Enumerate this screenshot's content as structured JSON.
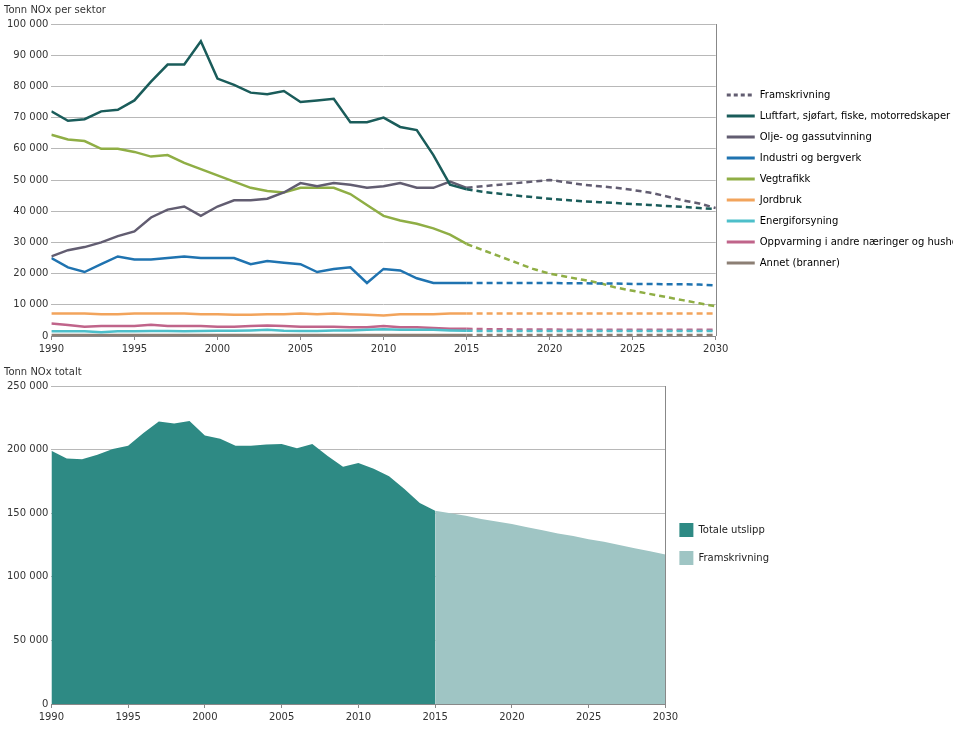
{
  "chart_data": [
    {
      "type": "line",
      "title": "Tonn NOx per sektor",
      "x": [
        1990,
        1991,
        1992,
        1993,
        1994,
        1995,
        1996,
        1997,
        1998,
        1999,
        2000,
        2001,
        2002,
        2003,
        2004,
        2005,
        2006,
        2007,
        2008,
        2009,
        2010,
        2011,
        2012,
        2013,
        2014,
        2015,
        2016,
        2017,
        2018,
        2019,
        2020,
        2021,
        2022,
        2023,
        2024,
        2025,
        2026,
        2027,
        2028,
        2029,
        2030
      ],
      "xlim": [
        1990,
        2030
      ],
      "xticks": [
        1990,
        1995,
        2000,
        2005,
        2010,
        2015,
        2020,
        2025,
        2030
      ],
      "ylim": [
        0,
        100000
      ],
      "yticks": [
        0,
        {
          "value": 10000,
          "label": "10 000"
        },
        {
          "value": 20000,
          "label": "20 000"
        },
        {
          "value": 30000,
          "label": "30 000"
        },
        {
          "value": 40000,
          "label": "40 000"
        },
        {
          "value": 50000,
          "label": "50 000"
        },
        {
          "value": 60000,
          "label": "60 000"
        },
        {
          "value": 70000,
          "label": "70 000"
        },
        {
          "value": 80000,
          "label": "80 000"
        },
        {
          "value": 90000,
          "label": "90 000"
        },
        {
          "value": 100000,
          "label": "100 000"
        }
      ],
      "grid": true,
      "legend": "right",
      "projection": {
        "name": "Framskrivning",
        "color": "#625d71",
        "line_style": "dashed"
      },
      "series": [
        {
          "name": "Luftfart, sjøfart, fiske, motorredskaper m.m.",
          "color": "#1a5c5a",
          "line_style": "solid",
          "values": [
            72000,
            69000,
            69500,
            72000,
            72500,
            75500,
            81500,
            87000,
            87000,
            94500,
            82500,
            80500,
            78000,
            77500,
            78500,
            75000,
            75500,
            76000,
            68500,
            68500,
            70000,
            67000,
            66000,
            58000,
            48500,
            47000,
            null,
            null,
            null,
            null,
            null,
            null,
            null,
            null,
            null,
            null,
            null,
            null,
            null,
            null,
            null
          ],
          "projection": [
            null,
            null,
            null,
            null,
            null,
            null,
            null,
            null,
            null,
            null,
            null,
            null,
            null,
            null,
            null,
            null,
            null,
            null,
            null,
            null,
            null,
            null,
            null,
            null,
            null,
            47000,
            46200,
            45600,
            45000,
            44500,
            44000,
            43600,
            43200,
            42900,
            42600,
            42300,
            42000,
            41700,
            41400,
            41000,
            40700
          ]
        },
        {
          "name": "Olje- og gassutvinning",
          "color": "#625d71",
          "line_style": "solid",
          "values": [
            25500,
            27500,
            28500,
            30000,
            32000,
            33500,
            38000,
            40500,
            41500,
            38500,
            41500,
            43500,
            43500,
            44000,
            46000,
            49000,
            48000,
            49000,
            48500,
            47500,
            48000,
            49000,
            47500,
            47500,
            49500,
            47500,
            null,
            null,
            null,
            null,
            null,
            null,
            null,
            null,
            null,
            null,
            null,
            null,
            null,
            null,
            null
          ],
          "projection": [
            null,
            null,
            null,
            null,
            null,
            null,
            null,
            null,
            null,
            null,
            null,
            null,
            null,
            null,
            null,
            null,
            null,
            null,
            null,
            null,
            null,
            null,
            null,
            null,
            null,
            47500,
            48000,
            48500,
            49000,
            49500,
            50000,
            49300,
            48500,
            48000,
            47500,
            46800,
            46000,
            44800,
            43500,
            42500,
            41000
          ]
        },
        {
          "name": "Industri og bergverk",
          "color": "#1f73b0",
          "line_style": "solid",
          "values": [
            25000,
            22000,
            20500,
            23000,
            25500,
            24500,
            24500,
            25000,
            25500,
            25000,
            25000,
            25000,
            23000,
            24000,
            23500,
            23000,
            20500,
            21500,
            22000,
            17000,
            21500,
            21000,
            18500,
            17000,
            17000,
            17000,
            null,
            null,
            null,
            null,
            null,
            null,
            null,
            null,
            null,
            null,
            null,
            null,
            null,
            null,
            null
          ],
          "projection": [
            null,
            null,
            null,
            null,
            null,
            null,
            null,
            null,
            null,
            null,
            null,
            null,
            null,
            null,
            null,
            null,
            null,
            null,
            null,
            null,
            null,
            null,
            null,
            null,
            null,
            17000,
            17000,
            17000,
            17000,
            17000,
            17000,
            16900,
            16900,
            16800,
            16800,
            16700,
            16700,
            16600,
            16600,
            16500,
            16200
          ]
        },
        {
          "name": "Vegtrafikk",
          "color": "#8fae45",
          "line_style": "solid",
          "values": [
            64500,
            63000,
            62500,
            60000,
            60000,
            59000,
            57500,
            58000,
            55500,
            53500,
            51500,
            49500,
            47500,
            46500,
            46000,
            47500,
            47500,
            47500,
            45500,
            42000,
            38500,
            37000,
            36000,
            34500,
            32500,
            29500,
            null,
            null,
            null,
            null,
            null,
            null,
            null,
            null,
            null,
            null,
            null,
            null,
            null,
            null,
            null
          ],
          "projection": [
            null,
            null,
            null,
            null,
            null,
            null,
            null,
            null,
            null,
            null,
            null,
            null,
            null,
            null,
            null,
            null,
            null,
            null,
            null,
            null,
            null,
            null,
            null,
            null,
            null,
            29500,
            27500,
            25500,
            23500,
            21500,
            20000,
            19000,
            18000,
            17000,
            15500,
            14500,
            13500,
            12500,
            11500,
            10500,
            9500
          ]
        },
        {
          "name": "Jordbruk",
          "color": "#f2a45c",
          "line_style": "solid",
          "values": [
            7200,
            7200,
            7200,
            7000,
            7000,
            7200,
            7200,
            7200,
            7200,
            7000,
            7000,
            6800,
            6800,
            7000,
            7000,
            7200,
            7000,
            7200,
            7000,
            6800,
            6600,
            7000,
            7000,
            7000,
            7200,
            7200,
            null,
            null,
            null,
            null,
            null,
            null,
            null,
            null,
            null,
            null,
            null,
            null,
            null,
            null,
            null
          ],
          "projection": [
            null,
            null,
            null,
            null,
            null,
            null,
            null,
            null,
            null,
            null,
            null,
            null,
            null,
            null,
            null,
            null,
            null,
            null,
            null,
            null,
            null,
            null,
            null,
            null,
            null,
            7200,
            7200,
            7200,
            7200,
            7200,
            7200,
            7200,
            7200,
            7200,
            7200,
            7200,
            7200,
            7200,
            7200,
            7200,
            7200
          ]
        },
        {
          "name": "Energiforsyning",
          "color": "#4dbfca",
          "line_style": "solid",
          "values": [
            1500,
            1500,
            1500,
            1200,
            1500,
            1500,
            1600,
            1600,
            1500,
            1600,
            1700,
            1700,
            1800,
            2000,
            1700,
            1600,
            1600,
            1800,
            1800,
            2000,
            2200,
            2000,
            2000,
            2000,
            1800,
            1700,
            null,
            null,
            null,
            null,
            null,
            null,
            null,
            null,
            null,
            null,
            null,
            null,
            null,
            null,
            null
          ],
          "projection": [
            null,
            null,
            null,
            null,
            null,
            null,
            null,
            null,
            null,
            null,
            null,
            null,
            null,
            null,
            null,
            null,
            null,
            null,
            null,
            null,
            null,
            null,
            null,
            null,
            null,
            1700,
            1600,
            1600,
            1600,
            1600,
            1600,
            1600,
            1600,
            1600,
            1600,
            1600,
            1600,
            1600,
            1600,
            1600,
            1600
          ]
        },
        {
          "name": "Oppvarming i andre næringer og husholdninger",
          "color": "#c0648a",
          "line_style": "solid",
          "values": [
            4000,
            3500,
            3000,
            3200,
            3200,
            3200,
            3600,
            3200,
            3200,
            3200,
            3000,
            3000,
            3200,
            3400,
            3200,
            3000,
            3000,
            3000,
            2800,
            2800,
            3200,
            2800,
            2800,
            2600,
            2300,
            2300,
            null,
            null,
            null,
            null,
            null,
            null,
            null,
            null,
            null,
            null,
            null,
            null,
            null,
            null,
            null
          ],
          "projection": [
            null,
            null,
            null,
            null,
            null,
            null,
            null,
            null,
            null,
            null,
            null,
            null,
            null,
            null,
            null,
            null,
            null,
            null,
            null,
            null,
            null,
            null,
            null,
            null,
            null,
            2300,
            2200,
            2200,
            2100,
            2100,
            2100,
            2000,
            2000,
            2000,
            2000,
            2000,
            2000,
            2000,
            2000,
            2000,
            2000
          ]
        },
        {
          "name": "Annet (branner)",
          "color": "#8c7f74",
          "line_style": "solid",
          "values": [
            300,
            300,
            300,
            300,
            300,
            300,
            300,
            300,
            300,
            300,
            300,
            300,
            300,
            300,
            300,
            300,
            300,
            300,
            300,
            300,
            300,
            300,
            300,
            300,
            300,
            300,
            null,
            null,
            null,
            null,
            null,
            null,
            null,
            null,
            null,
            null,
            null,
            null,
            null,
            null,
            null
          ],
          "projection": [
            null,
            null,
            null,
            null,
            null,
            null,
            null,
            null,
            null,
            null,
            null,
            null,
            null,
            null,
            null,
            null,
            null,
            null,
            null,
            null,
            null,
            null,
            null,
            null,
            null,
            300,
            300,
            300,
            300,
            300,
            300,
            300,
            300,
            300,
            300,
            300,
            300,
            300,
            300,
            300,
            300
          ]
        }
      ]
    },
    {
      "type": "area",
      "title": "Tonn NOx totalt",
      "x": [
        1990,
        1991,
        1992,
        1993,
        1994,
        1995,
        1996,
        1997,
        1998,
        1999,
        2000,
        2001,
        2002,
        2003,
        2004,
        2005,
        2006,
        2007,
        2008,
        2009,
        2010,
        2011,
        2012,
        2013,
        2014,
        2015,
        2016,
        2017,
        2018,
        2019,
        2020,
        2021,
        2022,
        2023,
        2024,
        2025,
        2026,
        2027,
        2028,
        2029,
        2030
      ],
      "xlim": [
        1990,
        2030
      ],
      "xticks": [
        1990,
        1995,
        2000,
        2005,
        2010,
        2015,
        2020,
        2025,
        2030
      ],
      "ylim": [
        0,
        250000
      ],
      "yticks": [
        0,
        {
          "value": 50000,
          "label": "50 000"
        },
        {
          "value": 100000,
          "label": "100 000"
        },
        {
          "value": 150000,
          "label": "150 000"
        },
        {
          "value": 200000,
          "label": "200 000"
        },
        {
          "value": 250000,
          "label": "250 000"
        }
      ],
      "grid": true,
      "legend": "right",
      "series": [
        {
          "name": "Totale utslipp",
          "color": "#2e8a84",
          "values": [
            199000,
            193000,
            192500,
            196000,
            200500,
            203000,
            213000,
            222000,
            220500,
            222500,
            211000,
            208500,
            203000,
            203000,
            204000,
            204500,
            201000,
            204500,
            195000,
            186500,
            189500,
            185000,
            179000,
            169000,
            158000,
            152000,
            null,
            null,
            null,
            null,
            null,
            null,
            null,
            null,
            null,
            null,
            null,
            null,
            null,
            null,
            null
          ]
        },
        {
          "name": "Framskrivning",
          "color": "#9fc5c4",
          "values": [
            null,
            null,
            null,
            null,
            null,
            null,
            null,
            null,
            null,
            null,
            null,
            null,
            null,
            null,
            null,
            null,
            null,
            null,
            null,
            null,
            null,
            null,
            null,
            null,
            null,
            152000,
            150000,
            148000,
            145500,
            143500,
            141500,
            139000,
            136500,
            134000,
            132000,
            129500,
            127500,
            125000,
            122500,
            120000,
            117500
          ]
        }
      ]
    }
  ]
}
